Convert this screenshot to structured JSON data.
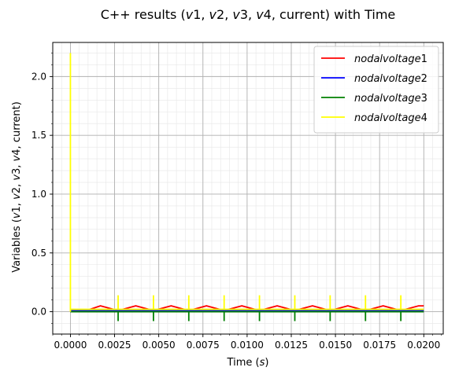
{
  "chart_data": {
    "type": "line",
    "title_parts": [
      "C++ results (",
      "v",
      "1, ",
      "v",
      "2, ",
      "v",
      "3, ",
      "v",
      "4, current) with Time"
    ],
    "xlabel_parts": [
      "Time (",
      "s",
      ")"
    ],
    "ylabel_parts": [
      "Variables (",
      "v",
      "1, ",
      "v",
      "2, ",
      "v",
      "3, ",
      "v",
      "4, current)"
    ],
    "xlim": [
      -0.001,
      0.0211
    ],
    "ylim": [
      -0.19,
      2.29
    ],
    "x_ticks": [
      0,
      0.0025,
      0.005,
      0.0075,
      0.01,
      0.0125,
      0.015,
      0.0175,
      0.02
    ],
    "x_tick_labels": [
      "0.0000",
      "0.0025",
      "0.0050",
      "0.0075",
      "0.0100",
      "0.0125",
      "0.0150",
      "0.0175",
      "0.0200"
    ],
    "y_ticks": [
      0,
      0.5,
      1.0,
      1.5,
      2.0
    ],
    "y_tick_labels": [
      "0.0",
      "0.5",
      "1.0",
      "1.5",
      "2.0"
    ],
    "grid": true,
    "minor_grid": true,
    "legend_position": "top-right",
    "series": [
      {
        "name": "nodalvoltage1",
        "legend_base": "nodalvoltage",
        "legend_index": "1",
        "color": "#ff0000",
        "x": [
          0,
          0.0007,
          0.0017,
          0.0027,
          0.0037,
          0.0047,
          0.0057,
          0.0067,
          0.0077,
          0.0087,
          0.0097,
          0.0107,
          0.0117,
          0.0127,
          0.0137,
          0.0147,
          0.0157,
          0.0167,
          0.0177,
          0.0187,
          0.0197,
          0.02
        ],
        "y": [
          0,
          0,
          0.05,
          0.01,
          0.05,
          0.01,
          0.05,
          0.01,
          0.05,
          0.01,
          0.05,
          0.01,
          0.05,
          0.01,
          0.05,
          0.01,
          0.05,
          0.01,
          0.05,
          0.01,
          0.05,
          0.05
        ]
      },
      {
        "name": "nodalvoltage2",
        "legend_base": "nodalvoltage",
        "legend_index": "2",
        "color": "#0000ff",
        "x": [
          0,
          0.02
        ],
        "y": [
          0.01,
          0.01
        ]
      },
      {
        "name": "nodalvoltage3",
        "legend_base": "nodalvoltage",
        "legend_index": "3",
        "color": "#008000",
        "x": [
          0,
          0.0027,
          0.0027,
          0.0027,
          0.0047,
          0.0047,
          0.0047,
          0.0067,
          0.0067,
          0.0067,
          0.0087,
          0.0087,
          0.0087,
          0.0107,
          0.0107,
          0.0107,
          0.0127,
          0.0127,
          0.0127,
          0.0147,
          0.0147,
          0.0147,
          0.0167,
          0.0167,
          0.0167,
          0.0187,
          0.0187,
          0.0187,
          0.02
        ],
        "y": [
          0,
          0,
          -0.08,
          0,
          0,
          -0.08,
          0,
          0,
          -0.08,
          0,
          0,
          -0.08,
          0,
          0,
          -0.08,
          0,
          0,
          -0.08,
          0,
          0,
          -0.08,
          0,
          0,
          -0.08,
          0,
          0,
          -0.08,
          0,
          0
        ]
      },
      {
        "name": "nodalvoltage4",
        "legend_base": "nodalvoltage",
        "legend_index": "4",
        "color": "#ffff00",
        "x": [
          0,
          0,
          0,
          0.0027,
          0.0027,
          0.0027,
          0.0047,
          0.0047,
          0.0047,
          0.0067,
          0.0067,
          0.0067,
          0.0087,
          0.0087,
          0.0087,
          0.0107,
          0.0107,
          0.0107,
          0.0127,
          0.0127,
          0.0127,
          0.0147,
          0.0147,
          0.0147,
          0.0167,
          0.0167,
          0.0167,
          0.0187,
          0.0187,
          0.0187,
          0.02
        ],
        "y": [
          0,
          2.2,
          0.02,
          0.02,
          0.14,
          0.02,
          0.02,
          0.14,
          0.02,
          0.02,
          0.14,
          0.02,
          0.02,
          0.14,
          0.02,
          0.02,
          0.14,
          0.02,
          0.02,
          0.14,
          0.02,
          0.02,
          0.14,
          0.02,
          0.02,
          0.14,
          0.02,
          0.02,
          0.14,
          0.02,
          0.02
        ]
      }
    ]
  }
}
